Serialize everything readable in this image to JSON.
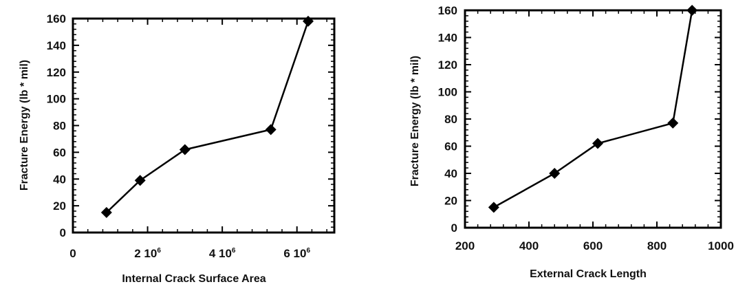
{
  "chart_data": [
    {
      "type": "line",
      "title": "",
      "xlabel": "Internal Crack Surface Area",
      "ylabel": "Fracture Energy (lb * mil)",
      "xlim": [
        0,
        7000000
      ],
      "ylim": [
        0,
        160
      ],
      "x_ticks": [
        {
          "value": 0,
          "label": "0"
        },
        {
          "value": 2000000,
          "label": "2 10",
          "exp": "6"
        },
        {
          "value": 4000000,
          "label": "4 10",
          "exp": "6"
        },
        {
          "value": 6000000,
          "label": "6 10",
          "exp": "6"
        }
      ],
      "y_ticks": [
        0,
        20,
        40,
        60,
        80,
        100,
        120,
        140,
        160
      ],
      "grid": false,
      "series": [
        {
          "x": [
            900000,
            1800000,
            3000000,
            5300000,
            6300000
          ],
          "y": [
            15,
            39,
            62,
            77,
            158
          ]
        }
      ]
    },
    {
      "type": "line",
      "title": "",
      "xlabel": "External Crack Length",
      "ylabel": "Fracture Energy (lb * mil)",
      "xlim": [
        200,
        1000
      ],
      "ylim": [
        0,
        160
      ],
      "x_ticks": [
        {
          "value": 200,
          "label": "200"
        },
        {
          "value": 400,
          "label": "400"
        },
        {
          "value": 600,
          "label": "600"
        },
        {
          "value": 800,
          "label": "800"
        },
        {
          "value": 1000,
          "label": "1000"
        }
      ],
      "y_ticks": [
        0,
        20,
        40,
        60,
        80,
        100,
        120,
        140,
        160
      ],
      "grid": false,
      "series": [
        {
          "x": [
            290,
            480,
            615,
            850,
            910
          ],
          "y": [
            15,
            40,
            62,
            77,
            160
          ]
        }
      ]
    }
  ]
}
